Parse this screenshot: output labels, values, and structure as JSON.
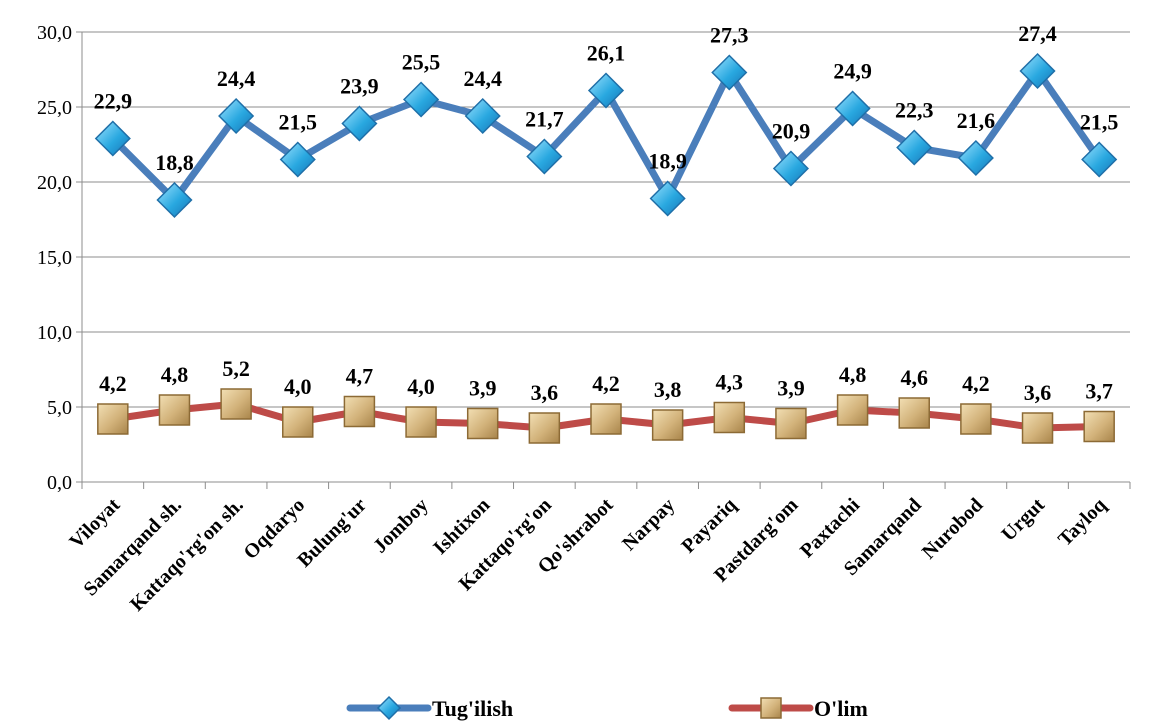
{
  "chart_data": {
    "type": "line",
    "title": "",
    "xlabel": "",
    "ylabel": "",
    "ylim": [
      0,
      30
    ],
    "yticks": [
      "0,0",
      "5,0",
      "10,0",
      "15,0",
      "20,0",
      "25,0",
      "30,0"
    ],
    "grid": true,
    "legend_position": "bottom",
    "categories": [
      "Viloyat",
      "Samarqand sh.",
      "Kattaqo'rg'on sh.",
      "Oqdaryo",
      "Bulung'ur",
      "Jomboy",
      "Ishtixon",
      "Kattaqo'rg'on",
      "Qo'shrabot",
      "Narpay",
      "Payariq",
      "Pastdarg'om",
      "Paxtachi",
      "Samarqand",
      "Nurobod",
      "Urgut",
      "Tayloq"
    ],
    "series": [
      {
        "name": "Tug'ilish",
        "color": "#4a7ebb",
        "marker": "diamond",
        "marker_color": "#29a8e0",
        "values": [
          22.9,
          18.8,
          24.4,
          21.5,
          23.9,
          25.5,
          24.4,
          21.7,
          26.1,
          18.9,
          27.3,
          20.9,
          24.9,
          22.3,
          21.6,
          27.4,
          21.5
        ],
        "labels": [
          "22,9",
          "18,8",
          "24,4",
          "21,5",
          "23,9",
          "25,5",
          "24,4",
          "21,7",
          "26,1",
          "18,9",
          "27,3",
          "20,9",
          "24,9",
          "22,3",
          "21,6",
          "27,4",
          "21,5"
        ]
      },
      {
        "name": "O'lim",
        "color": "#be4b48",
        "marker": "square",
        "marker_color": "#c8a96e",
        "values": [
          4.2,
          4.8,
          5.2,
          4.0,
          4.7,
          4.0,
          3.9,
          3.6,
          4.2,
          3.8,
          4.3,
          3.9,
          4.8,
          4.6,
          4.2,
          3.6,
          3.7
        ],
        "labels": [
          "4,2",
          "4,8",
          "5,2",
          "4,0",
          "4,7",
          "4,0",
          "3,9",
          "3,6",
          "4,2",
          "3,8",
          "4,3",
          "3,9",
          "4,8",
          "4,6",
          "4,2",
          "3,6",
          "3,7"
        ]
      }
    ]
  }
}
